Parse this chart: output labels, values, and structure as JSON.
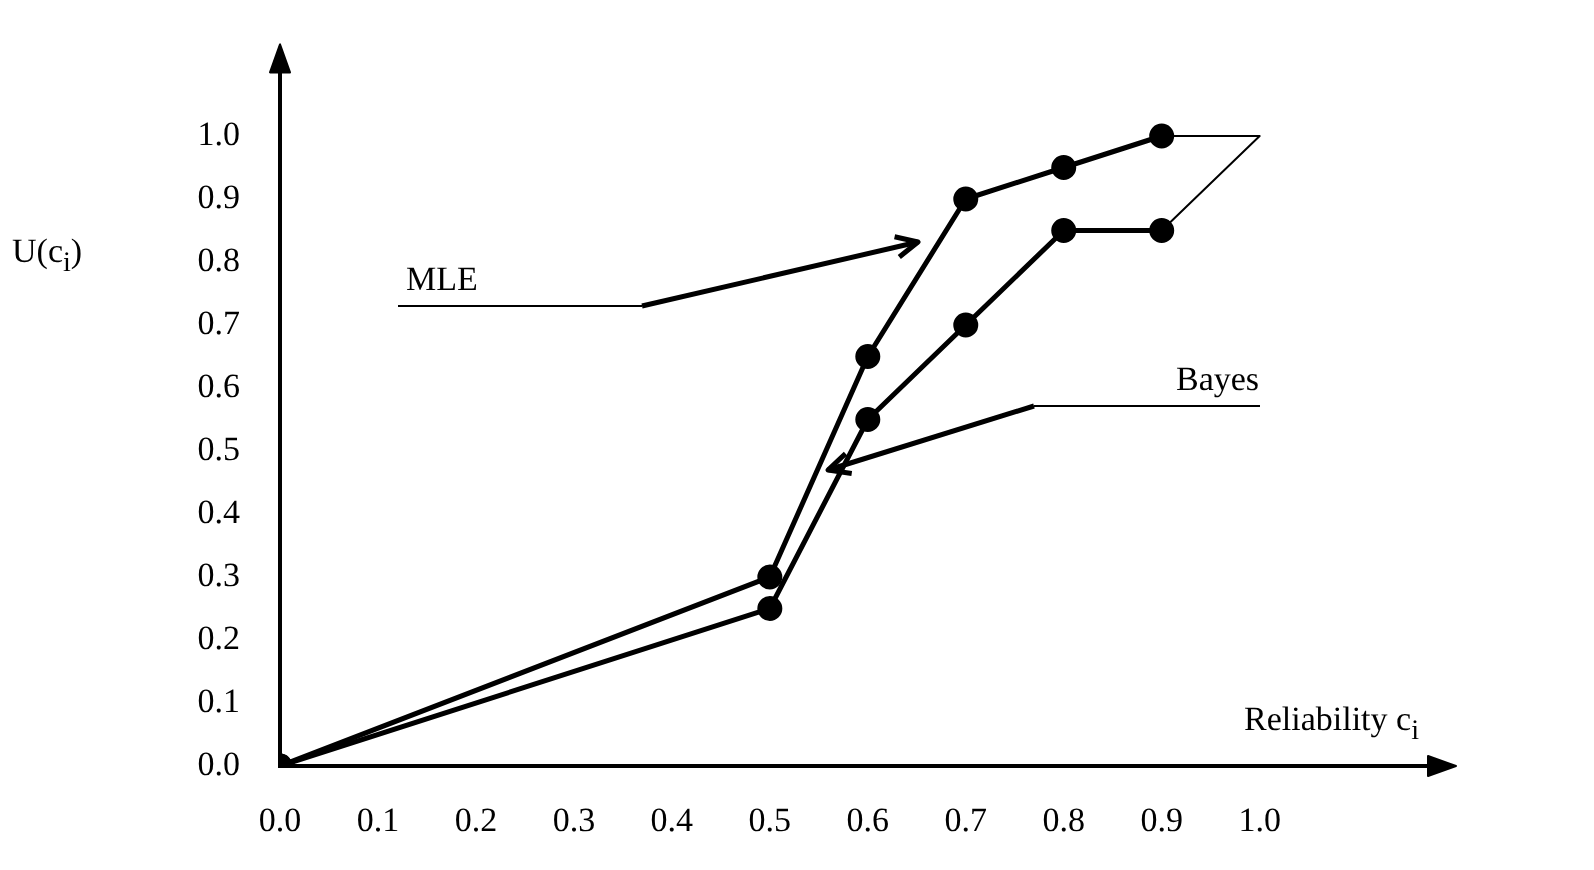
{
  "chart_data": {
    "type": "line",
    "xlabel": "Reliability c$_{i}$",
    "ylabel": "U(c$_{i}$)",
    "xlim": [
      0,
      1.18
    ],
    "ylim": [
      0,
      1.12
    ],
    "xticks": [
      {
        "value": 0,
        "label": "0.0"
      },
      {
        "value": 0.1,
        "label": "0.1"
      },
      {
        "value": 0.2,
        "label": "0.2"
      },
      {
        "value": 0.3,
        "label": "0.3"
      },
      {
        "value": 0.4,
        "label": "0.4"
      },
      {
        "value": 0.5,
        "label": "0.5"
      },
      {
        "value": 0.6,
        "label": "0.6"
      },
      {
        "value": 0.7,
        "label": "0.7"
      },
      {
        "value": 0.8,
        "label": "0.8"
      },
      {
        "value": 0.9,
        "label": "0.9"
      },
      {
        "value": 1,
        "label": "1.0"
      }
    ],
    "yticks": [
      {
        "value": 0,
        "label": "0.0"
      },
      0.1,
      0.2,
      0.3,
      0.4,
      0.5,
      0.6,
      0.7,
      0.8,
      0.9,
      {
        "value": 1,
        "label": "1.0"
      }
    ],
    "x": [
      0,
      0.5,
      0.6,
      0.7,
      0.8,
      0.9
    ],
    "series": [
      {
        "color": "#000000",
        "values": [
          0,
          0.3,
          0.65,
          0.9,
          0.95,
          1.0
        ]
      },
      {
        "color": "#000000",
        "values": [
          0,
          0.25,
          0.55,
          0.7,
          0.85,
          0.85
        ]
      }
    ],
    "annotations": [
      "MLE",
      "Bayes"
    ],
    "marker": "circle",
    "line_style": "solid",
    "grid": false,
    "legend": false
  }
}
